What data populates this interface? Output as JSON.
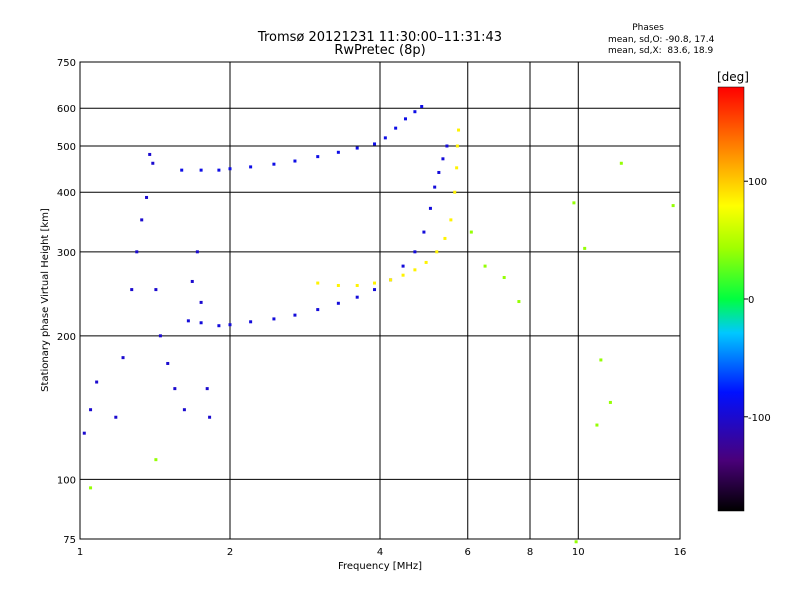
{
  "chart_data": {
    "type": "scatter",
    "title": "Tromsø 20121231 11:30:00–11:31:43",
    "subtitle": "RwPretec (8p)",
    "stats": {
      "header": "Phases",
      "line1": "mean, sd,O: -90.8, 17.4",
      "line2": "mean, sd,X:  83.6, 18.9"
    },
    "xlabel": "Frequency [MHz]",
    "ylabel": "Stationary phase Virtual Height [km]",
    "xscale": "log",
    "yscale": "log",
    "xlim": [
      1,
      16
    ],
    "ylim": [
      75,
      750
    ],
    "xticks": [
      1,
      2,
      4,
      6,
      8,
      10,
      16
    ],
    "yticks": [
      75,
      100,
      200,
      300,
      400,
      500,
      600,
      750
    ],
    "xgrid": [
      2,
      4,
      6,
      8,
      10
    ],
    "ygrid": [
      100,
      200,
      300,
      400,
      500,
      600
    ],
    "colorbar": {
      "label": "[deg]",
      "range": [
        -180,
        180
      ],
      "ticks": [
        -100,
        0,
        100
      ]
    },
    "series": [
      {
        "kind": "O-trace low",
        "phase": -95,
        "points": [
          [
            1.65,
            215
          ],
          [
            1.75,
            213
          ],
          [
            1.9,
            210
          ],
          [
            2.0,
            211
          ],
          [
            2.2,
            214
          ],
          [
            2.45,
            217
          ],
          [
            2.7,
            221
          ],
          [
            3.0,
            227
          ],
          [
            3.3,
            234
          ],
          [
            3.6,
            241
          ],
          [
            3.9,
            250
          ],
          [
            4.2,
            262
          ],
          [
            4.45,
            280
          ],
          [
            4.7,
            300
          ],
          [
            4.9,
            330
          ],
          [
            5.05,
            370
          ],
          [
            5.15,
            410
          ],
          [
            5.25,
            440
          ],
          [
            5.35,
            470
          ],
          [
            5.45,
            500
          ]
        ]
      },
      {
        "kind": "O-trace upper",
        "phase": -90,
        "points": [
          [
            1.6,
            445
          ],
          [
            1.75,
            445
          ],
          [
            1.9,
            445
          ],
          [
            2.0,
            448
          ],
          [
            2.2,
            452
          ],
          [
            2.45,
            458
          ],
          [
            2.7,
            465
          ],
          [
            3.0,
            475
          ],
          [
            3.3,
            485
          ],
          [
            3.6,
            495
          ],
          [
            3.9,
            505
          ],
          [
            4.1,
            520
          ],
          [
            4.3,
            545
          ],
          [
            4.5,
            570
          ],
          [
            4.7,
            590
          ],
          [
            4.85,
            605
          ]
        ]
      },
      {
        "kind": "low frequency spread",
        "phase": -100,
        "points": [
          [
            1.02,
            125
          ],
          [
            1.05,
            140
          ],
          [
            1.08,
            160
          ],
          [
            1.18,
            135
          ],
          [
            1.22,
            180
          ],
          [
            1.27,
            250
          ],
          [
            1.3,
            300
          ],
          [
            1.33,
            350
          ],
          [
            1.36,
            390
          ],
          [
            1.38,
            480
          ],
          [
            1.4,
            460
          ],
          [
            1.42,
            250
          ],
          [
            1.45,
            200
          ],
          [
            1.5,
            175
          ],
          [
            1.55,
            155
          ],
          [
            1.62,
            140
          ],
          [
            1.68,
            260
          ],
          [
            1.72,
            300
          ],
          [
            1.75,
            235
          ],
          [
            1.8,
            155
          ],
          [
            1.82,
            135
          ]
        ]
      },
      {
        "kind": "X-trace",
        "phase": 84,
        "points": [
          [
            3.0,
            258
          ],
          [
            3.3,
            255
          ],
          [
            3.6,
            255
          ],
          [
            3.9,
            258
          ],
          [
            4.2,
            262
          ],
          [
            4.45,
            268
          ],
          [
            4.7,
            275
          ],
          [
            4.95,
            285
          ],
          [
            5.2,
            300
          ],
          [
            5.4,
            320
          ],
          [
            5.55,
            350
          ],
          [
            5.65,
            400
          ],
          [
            5.7,
            450
          ],
          [
            5.72,
            500
          ],
          [
            5.75,
            540
          ]
        ]
      },
      {
        "kind": "scattered echoes",
        "phase": 40,
        "points": [
          [
            6.1,
            330
          ],
          [
            6.5,
            280
          ],
          [
            7.1,
            265
          ],
          [
            7.6,
            236
          ],
          [
            9.8,
            380
          ],
          [
            10.3,
            305
          ],
          [
            10.9,
            130
          ],
          [
            11.1,
            178
          ],
          [
            11.6,
            145
          ],
          [
            12.2,
            460
          ],
          [
            15.5,
            375
          ],
          [
            1.42,
            110
          ],
          [
            1.05,
            96
          ],
          [
            9.9,
            74
          ]
        ]
      }
    ]
  }
}
